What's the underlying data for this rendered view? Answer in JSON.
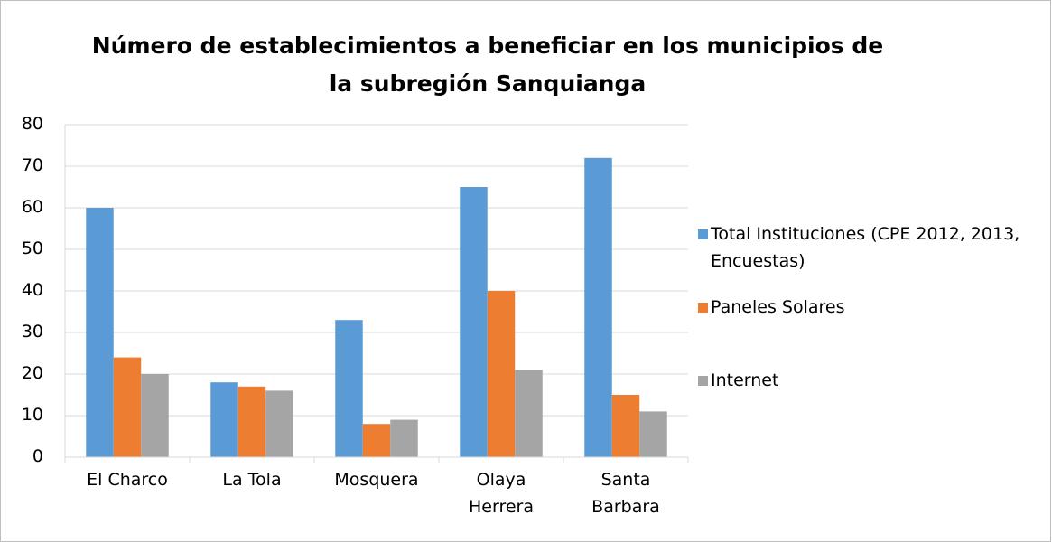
{
  "chart_data": {
    "type": "bar",
    "title": "Número de establecimientos a beneficiar en los municipios de la subregión Sanquianga",
    "categories": [
      "El Charco",
      "La Tola",
      "Mosquera",
      "Olaya Herrera",
      "Santa Barbara"
    ],
    "series": [
      {
        "name": "Total Instituciones (CPE 2012, 2013, Encuestas)",
        "color": "#5b9bd5",
        "values": [
          60,
          18,
          33,
          65,
          72
        ]
      },
      {
        "name": "Paneles Solares",
        "color": "#ed7d31",
        "values": [
          24,
          17,
          8,
          40,
          15
        ]
      },
      {
        "name": "Internet",
        "color": "#a5a5a5",
        "values": [
          20,
          16,
          9,
          21,
          11
        ]
      }
    ],
    "ylim": [
      0,
      80
    ],
    "yticks": [
      0,
      10,
      20,
      30,
      40,
      50,
      60,
      70,
      80
    ],
    "grid": true,
    "legend": "right"
  }
}
